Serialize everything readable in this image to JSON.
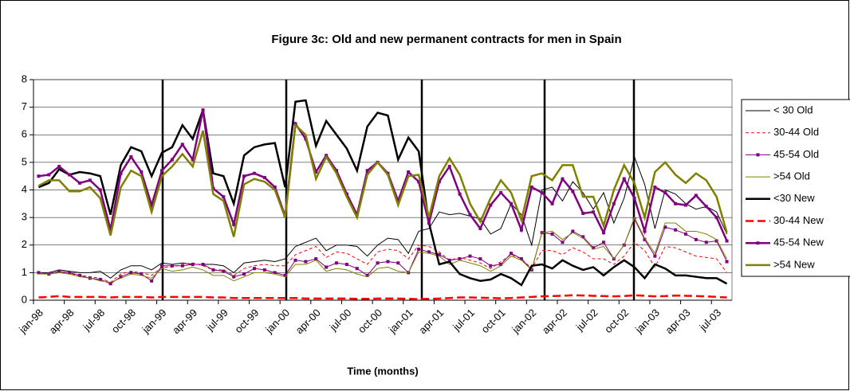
{
  "chart_data": {
    "type": "line",
    "title": "Figure 3c: Old and new permanent contracts for men in Spain",
    "x_label": "Time (months)",
    "categories": [
      "jan-98",
      null,
      null,
      "apr-98",
      null,
      null,
      "jul-98",
      null,
      null,
      "oct-98",
      null,
      null,
      "jan-99",
      null,
      null,
      "apr-99",
      null,
      null,
      "jul-99",
      null,
      null,
      "oct-99",
      null,
      null,
      "jan-00",
      null,
      null,
      "apr-00",
      null,
      null,
      "jul-00",
      null,
      null,
      "oct-00",
      null,
      null,
      "jan-01",
      null,
      null,
      "apr-01",
      null,
      null,
      "jul-01",
      null,
      null,
      "oct-01",
      null,
      null,
      "jan-02",
      null,
      null,
      "apr-02",
      null,
      null,
      "jul-02",
      null,
      null,
      "oct-02",
      null,
      null,
      "jan-03",
      null,
      null,
      "apr-03",
      null,
      null,
      "jul-03",
      null
    ],
    "ylim": [
      0,
      8
    ],
    "yticks": [
      0,
      1,
      2,
      3,
      4,
      5,
      6,
      7,
      8
    ],
    "grid": true,
    "legend": "right",
    "series": [
      {
        "name": "< 30 Old",
        "color": "#000000",
        "width": 1,
        "dashed": false,
        "marker": false,
        "values": [
          1.0,
          1.0,
          1.1,
          1.05,
          1.0,
          1.0,
          1.05,
          0.8,
          1.1,
          1.25,
          1.25,
          1.1,
          1.35,
          1.3,
          1.35,
          1.3,
          1.3,
          1.3,
          1.25,
          1.0,
          1.35,
          1.4,
          1.45,
          1.4,
          1.5,
          1.95,
          2.1,
          2.25,
          1.8,
          2.0,
          2.0,
          1.95,
          1.6,
          2.0,
          2.25,
          2.2,
          1.7,
          2.5,
          2.6,
          3.2,
          3.1,
          3.15,
          3.05,
          2.95,
          2.4,
          2.6,
          3.5,
          3.1,
          2.0,
          4.0,
          4.1,
          3.6,
          4.3,
          3.9,
          3.3,
          3.9,
          2.8,
          3.7,
          5.2,
          4.2,
          2.6,
          4.0,
          3.85,
          3.5,
          3.3,
          3.4,
          3.2,
          2.4
        ]
      },
      {
        "name": "30-44 Old",
        "color": "#ff0000",
        "width": 1,
        "dashed": true,
        "marker": false,
        "values": [
          1.0,
          0.95,
          1.0,
          0.95,
          0.9,
          0.85,
          0.8,
          0.65,
          0.95,
          1.05,
          1.0,
          0.9,
          1.2,
          1.2,
          1.3,
          1.35,
          1.25,
          1.1,
          1.1,
          0.9,
          1.15,
          1.25,
          1.3,
          1.25,
          1.25,
          1.65,
          1.8,
          1.95,
          1.55,
          1.75,
          1.7,
          1.5,
          1.3,
          1.75,
          1.85,
          1.8,
          1.5,
          2.0,
          1.95,
          1.75,
          1.45,
          1.55,
          1.45,
          1.35,
          1.15,
          1.4,
          1.65,
          1.5,
          1.15,
          1.8,
          1.8,
          1.65,
          1.9,
          1.75,
          1.5,
          1.5,
          1.3,
          1.6,
          2.1,
          1.8,
          1.2,
          1.95,
          1.9,
          1.75,
          1.6,
          1.55,
          1.5,
          1.0
        ]
      },
      {
        "name": "45-54 Old",
        "color": "#800080",
        "width": 1,
        "dashed": false,
        "marker": true,
        "values": [
          1.0,
          0.95,
          1.05,
          1.0,
          0.9,
          0.8,
          0.75,
          0.6,
          0.85,
          1.0,
          0.95,
          0.7,
          1.25,
          1.25,
          1.25,
          1.3,
          1.3,
          1.1,
          1.05,
          0.85,
          0.95,
          1.15,
          1.1,
          1.0,
          0.9,
          1.45,
          1.4,
          1.5,
          1.2,
          1.35,
          1.3,
          1.15,
          0.9,
          1.35,
          1.4,
          1.35,
          1.0,
          1.85,
          1.75,
          1.65,
          1.45,
          1.5,
          1.6,
          1.5,
          1.25,
          1.3,
          1.7,
          1.5,
          1.1,
          2.45,
          2.4,
          2.1,
          2.5,
          2.3,
          1.9,
          2.1,
          1.5,
          2.0,
          2.95,
          2.2,
          1.6,
          2.65,
          2.55,
          2.4,
          2.2,
          2.1,
          2.15,
          1.4
        ]
      },
      {
        "name": ">54 Old",
        "color": "#808000",
        "width": 1,
        "dashed": false,
        "marker": false,
        "values": [
          0.95,
          0.95,
          1.0,
          0.95,
          0.85,
          0.8,
          0.7,
          0.65,
          0.8,
          0.95,
          0.9,
          0.8,
          1.15,
          1.05,
          1.1,
          1.2,
          1.1,
          0.9,
          0.9,
          0.7,
          0.85,
          1.0,
          1.0,
          0.95,
          0.85,
          1.3,
          1.3,
          1.45,
          1.05,
          1.15,
          1.1,
          0.95,
          0.85,
          1.15,
          1.2,
          1.05,
          1.0,
          1.75,
          1.7,
          1.6,
          1.3,
          1.45,
          1.35,
          1.25,
          1.05,
          1.25,
          1.6,
          1.45,
          1.1,
          2.45,
          2.5,
          2.2,
          2.45,
          2.25,
          1.85,
          1.95,
          1.5,
          2.0,
          3.0,
          2.25,
          1.7,
          2.8,
          2.8,
          2.5,
          2.5,
          2.4,
          2.2,
          1.5
        ]
      },
      {
        "name": "<30 New",
        "color": "#000000",
        "width": 2.5,
        "dashed": false,
        "marker": false,
        "values": [
          4.1,
          4.25,
          4.75,
          4.55,
          4.65,
          4.6,
          4.5,
          3.1,
          4.9,
          5.55,
          5.4,
          4.5,
          5.35,
          5.55,
          6.35,
          5.85,
          6.9,
          4.6,
          4.5,
          3.5,
          5.25,
          5.55,
          5.65,
          5.7,
          4.1,
          7.2,
          7.25,
          5.6,
          6.5,
          6.0,
          5.5,
          4.7,
          6.3,
          6.8,
          6.7,
          5.1,
          5.9,
          5.4,
          2.8,
          1.3,
          1.4,
          0.95,
          0.8,
          0.7,
          0.75,
          0.95,
          0.8,
          0.55,
          1.25,
          1.3,
          1.15,
          1.45,
          1.25,
          1.1,
          1.2,
          0.9,
          1.2,
          1.45,
          1.2,
          0.8,
          1.3,
          1.15,
          0.9,
          0.9,
          0.85,
          0.8,
          0.8,
          0.6
        ]
      },
      {
        "name": "30-44 New",
        "color": "#ff0000",
        "width": 2.5,
        "dashed": true,
        "marker": false,
        "values": [
          0.1,
          0.12,
          0.15,
          0.12,
          0.12,
          0.12,
          0.12,
          0.1,
          0.12,
          0.12,
          0.12,
          0.1,
          0.12,
          0.12,
          0.12,
          0.12,
          0.12,
          0.1,
          0.1,
          0.08,
          0.08,
          0.08,
          0.08,
          0.08,
          0.08,
          0.08,
          0.06,
          0.06,
          0.06,
          0.06,
          0.06,
          0.05,
          0.05,
          0.06,
          0.06,
          0.06,
          0.05,
          0.04,
          0.05,
          0.06,
          0.08,
          0.1,
          0.1,
          0.09,
          0.08,
          0.07,
          0.08,
          0.1,
          0.12,
          0.14,
          0.15,
          0.16,
          0.18,
          0.17,
          0.16,
          0.15,
          0.14,
          0.15,
          0.18,
          0.16,
          0.14,
          0.15,
          0.17,
          0.16,
          0.15,
          0.14,
          0.12,
          0.1
        ]
      },
      {
        "name": "45-54 New",
        "color": "#800080",
        "width": 2.5,
        "dashed": false,
        "marker": true,
        "values": [
          4.5,
          4.55,
          4.85,
          4.55,
          4.25,
          4.35,
          4.0,
          2.55,
          4.6,
          5.2,
          4.65,
          3.45,
          4.7,
          5.1,
          5.65,
          5.1,
          6.9,
          4.05,
          3.75,
          2.75,
          4.5,
          4.6,
          4.45,
          4.1,
          3.05,
          6.4,
          5.85,
          4.65,
          5.25,
          4.7,
          3.85,
          3.1,
          4.7,
          5.0,
          4.6,
          3.6,
          4.65,
          4.3,
          2.8,
          4.3,
          4.85,
          3.85,
          3.1,
          2.6,
          3.45,
          3.9,
          3.5,
          2.55,
          4.1,
          3.9,
          3.5,
          4.4,
          3.95,
          3.15,
          3.2,
          2.45,
          3.5,
          4.4,
          3.7,
          2.5,
          4.1,
          3.9,
          3.5,
          3.45,
          3.8,
          3.4,
          3.0,
          2.15
        ]
      },
      {
        "name": ">54 New",
        "color": "#808000",
        "width": 2.5,
        "dashed": false,
        "marker": false,
        "values": [
          4.15,
          4.35,
          4.35,
          3.95,
          3.95,
          4.1,
          3.7,
          2.35,
          4.1,
          4.7,
          4.5,
          3.2,
          4.5,
          4.85,
          5.3,
          4.85,
          6.15,
          3.85,
          3.6,
          2.3,
          4.2,
          4.4,
          4.3,
          4.0,
          3.0,
          6.35,
          6.0,
          4.4,
          5.2,
          4.6,
          3.75,
          3.0,
          4.55,
          5.0,
          4.55,
          3.45,
          4.5,
          4.55,
          3.0,
          4.5,
          5.15,
          4.55,
          3.5,
          2.85,
          3.7,
          4.35,
          3.9,
          2.9,
          4.5,
          4.6,
          4.35,
          4.9,
          4.9,
          3.75,
          3.75,
          2.7,
          4.0,
          4.9,
          4.25,
          3.0,
          4.65,
          5.0,
          4.55,
          4.25,
          4.6,
          4.35,
          3.75,
          2.45
        ]
      }
    ]
  }
}
